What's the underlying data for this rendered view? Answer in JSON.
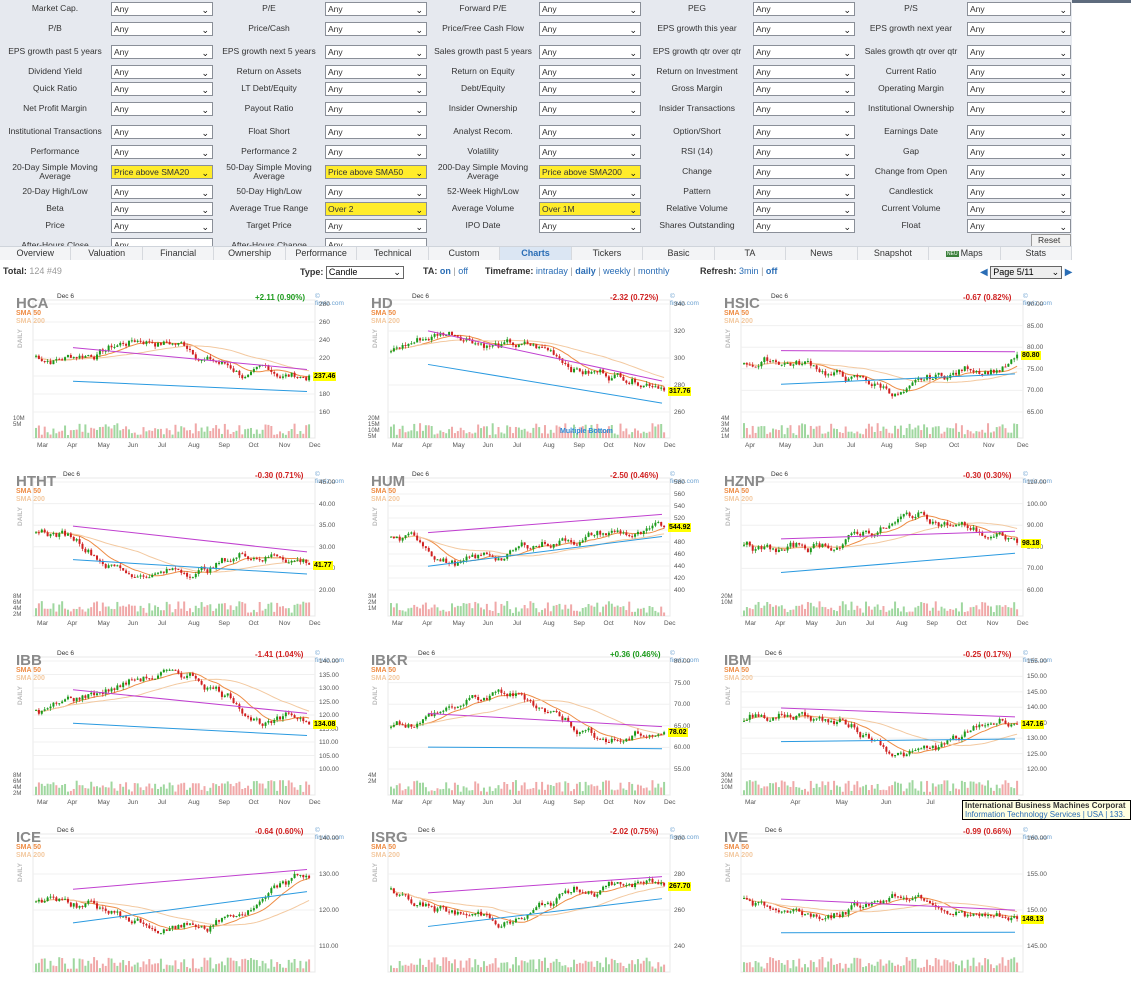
{
  "filters": [
    [
      [
        "Market Cap.",
        "Any",
        false
      ],
      [
        "P/E",
        "Any",
        false
      ],
      [
        "Forward P/E",
        "Any",
        false
      ],
      [
        "PEG",
        "Any",
        false
      ],
      [
        "P/S",
        "Any",
        false
      ]
    ],
    [
      [
        "P/B",
        "Any",
        false
      ],
      [
        "Price/Cash",
        "Any",
        false
      ],
      [
        "Price/Free Cash Flow",
        "Any",
        false
      ],
      [
        "EPS growth this year",
        "Any",
        false
      ],
      [
        "EPS growth next year",
        "Any",
        false
      ]
    ],
    [
      [
        "EPS growth past 5 years",
        "Any",
        false
      ],
      [
        "EPS growth next 5 years",
        "Any",
        false
      ],
      [
        "Sales growth past 5 years",
        "Any",
        false
      ],
      [
        "EPS growth qtr over qtr",
        "Any",
        false
      ],
      [
        "Sales growth qtr over qtr",
        "Any",
        false
      ]
    ],
    [
      [
        "Dividend Yield",
        "Any",
        false
      ],
      [
        "Return on Assets",
        "Any",
        false
      ],
      [
        "Return on Equity",
        "Any",
        false
      ],
      [
        "Return on Investment",
        "Any",
        false
      ],
      [
        "Current Ratio",
        "Any",
        false
      ]
    ],
    [
      [
        "Quick Ratio",
        "Any",
        false
      ],
      [
        "LT Debt/Equity",
        "Any",
        false
      ],
      [
        "Debt/Equity",
        "Any",
        false
      ],
      [
        "Gross Margin",
        "Any",
        false
      ],
      [
        "Operating Margin",
        "Any",
        false
      ]
    ],
    [
      [
        "Net Profit Margin",
        "Any",
        false
      ],
      [
        "Payout Ratio",
        "Any",
        false
      ],
      [
        "Insider Ownership",
        "Any",
        false
      ],
      [
        "Insider Transactions",
        "Any",
        false
      ],
      [
        "Institutional Ownership",
        "Any",
        false
      ]
    ],
    [
      [
        "Institutional Transactions",
        "Any",
        false
      ],
      [
        "Float Short",
        "Any",
        false
      ],
      [
        "Analyst Recom.",
        "Any",
        false
      ],
      [
        "Option/Short",
        "Any",
        false
      ],
      [
        "Earnings Date",
        "Any",
        false
      ]
    ],
    [
      [
        "Performance",
        "Any",
        false
      ],
      [
        "Performance 2",
        "Any",
        false
      ],
      [
        "Volatility",
        "Any",
        false
      ],
      [
        "RSI (14)",
        "Any",
        false
      ],
      [
        "Gap",
        "Any",
        false
      ]
    ],
    [
      [
        "20-Day Simple Moving Average",
        "Price above SMA20",
        true
      ],
      [
        "50-Day Simple Moving Average",
        "Price above SMA50",
        true
      ],
      [
        "200-Day Simple Moving Average",
        "Price above SMA200",
        true
      ],
      [
        "Change",
        "Any",
        false
      ],
      [
        "Change from Open",
        "Any",
        false
      ]
    ],
    [
      [
        "20-Day High/Low",
        "Any",
        false
      ],
      [
        "50-Day High/Low",
        "Any",
        false
      ],
      [
        "52-Week High/Low",
        "Any",
        false
      ],
      [
        "Pattern",
        "Any",
        false
      ],
      [
        "Candlestick",
        "Any",
        false
      ]
    ],
    [
      [
        "Beta",
        "Any",
        false
      ],
      [
        "Average True Range",
        "Over 2",
        true
      ],
      [
        "Average Volume",
        "Over 1M",
        true
      ],
      [
        "Relative Volume",
        "Any",
        false
      ],
      [
        "Current Volume",
        "Any",
        false
      ]
    ],
    [
      [
        "Price",
        "Any",
        false
      ],
      [
        "Target Price",
        "Any",
        false
      ],
      [
        "IPO Date",
        "Any",
        false
      ],
      [
        "Shares Outstanding",
        "Any",
        false
      ],
      [
        "Float",
        "Any",
        false
      ]
    ]
  ],
  "last_row": [
    [
      "After-Hours Close",
      "Any"
    ],
    [
      "After-Hours Change",
      "Any"
    ]
  ],
  "reset_label": "Reset (5)",
  "tabs": [
    "Overview",
    "Valuation",
    "Financial",
    "Ownership",
    "Performance",
    "Technical",
    "Custom",
    "Charts",
    "Tickers",
    "Basic",
    "TA",
    "News",
    "Snapshot",
    "Maps",
    "Stats"
  ],
  "active_tab": "Charts",
  "maps_badge": "NEU",
  "toolbar": {
    "total_label": "Total:",
    "total_value": "124 #49",
    "type_label": "Type:",
    "type_value": "Candle",
    "ta_label": "TA:",
    "ta_on": "on",
    "ta_sep": "|",
    "ta_off": "off",
    "timeframe_label": "Timeframe:",
    "timeframe_options": [
      "intraday",
      "daily",
      "weekly",
      "monthly"
    ],
    "timeframe_selected": "daily",
    "refresh_label": "Refresh:",
    "refresh_value": "3min",
    "refresh_off": "off",
    "page_value": "Page 5/11",
    "prev_icon": "◀",
    "next_icon": "▶"
  },
  "charts": [
    {
      "ticker": "HCA",
      "date": "Dec 6",
      "change": "+2.11 (0.90%)",
      "dir": "up",
      "price": "237.46",
      "yticks": [
        "280",
        "260",
        "240",
        "220",
        "200",
        "180",
        "160"
      ],
      "vticks": [
        "10M",
        "5M"
      ],
      "months": [
        "Mar",
        "Apr",
        "May",
        "Jun",
        "Jul",
        "Aug",
        "Sep",
        "Oct",
        "Nov",
        "Dec"
      ],
      "annotation": ""
    },
    {
      "ticker": "HD",
      "date": "Dec 6",
      "change": "-2.32 (0.72%)",
      "dir": "down",
      "price": "317.76",
      "yticks": [
        "340",
        "320",
        "300",
        "280",
        "260"
      ],
      "vticks": [
        "20M",
        "15M",
        "10M",
        "5M"
      ],
      "months": [
        "Mar",
        "Apr",
        "May",
        "Jun",
        "Jul",
        "Aug",
        "Sep",
        "Oct",
        "Nov",
        "Dec"
      ],
      "annotation": "Multiple Bottom"
    },
    {
      "ticker": "HSIC",
      "date": "Dec 6",
      "change": "-0.67 (0.82%)",
      "dir": "down",
      "price": "80.80",
      "yticks": [
        "90.00",
        "85.00",
        "80.00",
        "75.00",
        "70.00",
        "65.00"
      ],
      "vticks": [
        "4M",
        "3M",
        "2M",
        "1M"
      ],
      "months": [
        "Apr",
        "May",
        "Jun",
        "Jul",
        "Aug",
        "Sep",
        "Oct",
        "Nov",
        "Dec"
      ],
      "annotation": ""
    },
    {
      "ticker": "HTHT",
      "date": "Dec 6",
      "change": "-0.30 (0.71%)",
      "dir": "down",
      "price": "41.77",
      "yticks": [
        "45.00",
        "40.00",
        "35.00",
        "30.00",
        "25.00",
        "20.00"
      ],
      "vticks": [
        "8M",
        "6M",
        "4M",
        "2M"
      ],
      "months": [
        "Mar",
        "Apr",
        "May",
        "Jun",
        "Jul",
        "Aug",
        "Sep",
        "Oct",
        "Nov",
        "Dec"
      ],
      "annotation": ""
    },
    {
      "ticker": "HUM",
      "date": "Dec 6",
      "change": "-2.50 (0.46%)",
      "dir": "down",
      "price": "544.92",
      "yticks": [
        "580",
        "560",
        "540",
        "520",
        "500",
        "480",
        "460",
        "440",
        "420",
        "400"
      ],
      "vticks": [
        "3M",
        "2M",
        "1M"
      ],
      "months": [
        "Mar",
        "Apr",
        "May",
        "Jun",
        "Jul",
        "Aug",
        "Sep",
        "Oct",
        "Nov",
        "Dec"
      ],
      "annotation": ""
    },
    {
      "ticker": "HZNP",
      "date": "Dec 6",
      "change": "-0.30 (0.30%)",
      "dir": "down",
      "price": "98.18",
      "yticks": [
        "110.00",
        "100.00",
        "90.00",
        "80.00",
        "70.00",
        "60.00"
      ],
      "vticks": [
        "20M",
        "10M"
      ],
      "months": [
        "Mar",
        "Apr",
        "May",
        "Jun",
        "Jul",
        "Aug",
        "Sep",
        "Oct",
        "Nov",
        "Dec"
      ],
      "annotation": ""
    },
    {
      "ticker": "IBB",
      "date": "Dec 6",
      "change": "-1.41 (1.04%)",
      "dir": "down",
      "price": "134.08",
      "yticks": [
        "140.00",
        "135.00",
        "130.00",
        "125.00",
        "120.00",
        "115.00",
        "110.00",
        "105.00",
        "100.00"
      ],
      "vticks": [
        "8M",
        "6M",
        "4M",
        "2M"
      ],
      "months": [
        "Mar",
        "Apr",
        "May",
        "Jun",
        "Jul",
        "Aug",
        "Sep",
        "Oct",
        "Nov",
        "Dec"
      ],
      "annotation": ""
    },
    {
      "ticker": "IBKR",
      "date": "Dec 6",
      "change": "+0.36 (0.46%)",
      "dir": "up",
      "price": "78.02",
      "yticks": [
        "80.00",
        "75.00",
        "70.00",
        "65.00",
        "60.00",
        "55.00"
      ],
      "vticks": [
        "4M",
        "2M"
      ],
      "months": [
        "Mar",
        "Apr",
        "May",
        "Jun",
        "Jul",
        "Aug",
        "Sep",
        "Oct",
        "Nov",
        "Dec"
      ],
      "annotation": ""
    },
    {
      "ticker": "IBM",
      "date": "Dec 6",
      "change": "-0.25 (0.17%)",
      "dir": "down",
      "price": "147.16",
      "yticks": [
        "155.00",
        "150.00",
        "145.00",
        "140.00",
        "135.00",
        "130.00",
        "125.00",
        "120.00"
      ],
      "vticks": [
        "30M",
        "20M",
        "10M"
      ],
      "months": [
        "Mar",
        "Apr",
        "May",
        "Jun",
        "Jul",
        "Aug",
        "Sep"
      ],
      "annotation": ""
    },
    {
      "ticker": "ICE",
      "date": "Dec 6",
      "change": "-0.64 (0.60%)",
      "dir": "down",
      "price": "",
      "yticks": [
        "140.00",
        "130.00",
        "120.00",
        "110.00"
      ],
      "vticks": [],
      "months": [],
      "annotation": ""
    },
    {
      "ticker": "ISRG",
      "date": "Dec 6",
      "change": "-2.02 (0.75%)",
      "dir": "down",
      "price": "267.70",
      "yticks": [
        "300",
        "280",
        "260",
        "240"
      ],
      "vticks": [],
      "months": [],
      "annotation": ""
    },
    {
      "ticker": "IVE",
      "date": "Dec 6",
      "change": "-0.99 (0.66%)",
      "dir": "down",
      "price": "148.13",
      "yticks": [
        "160.00",
        "155.00",
        "150.00",
        "145.00"
      ],
      "vticks": [],
      "months": [],
      "annotation": ""
    }
  ],
  "chart_common": {
    "sma50_label": "SMA 50",
    "sma200_label": "SMA 200",
    "daily_label": "DAILY",
    "brand": "© finviz.com"
  },
  "tooltip": {
    "name": "International Business Machines Corporat",
    "meta": "Information Technology Services | USA | 133."
  },
  "colors": {
    "up": "#1a9a1a",
    "down": "#d02020",
    "sma50": "#ee8c44",
    "sma200": "#f3c9a0",
    "resistance": "#c040d0",
    "support": "#2a9ae0",
    "highlight": "#ffec2a"
  }
}
